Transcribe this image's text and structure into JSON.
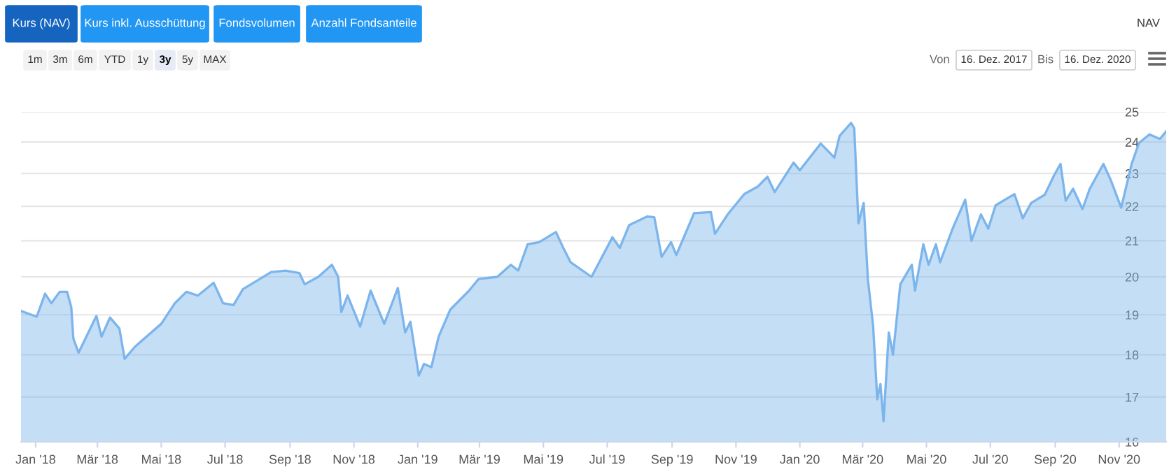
{
  "chart_data": {
    "type": "area",
    "annotations": [
      "Kurs (NAV)",
      "Kurs inkl. Ausschüttung",
      "Fondsvolumen",
      "Anzahl Fondsanteile",
      "NAV",
      "1m",
      "3m",
      "6m",
      "YTD",
      "1y",
      "3y",
      "5y",
      "MAX",
      "Von",
      "16. Dez. 2017",
      "Bis",
      "16. Dez. 2020"
    ],
    "series": [
      {
        "color": "#7cb5ec",
        "x": [
          "2017-12-18",
          "2018-01-02",
          "2018-01-10",
          "2018-01-16",
          "2018-01-24",
          "2018-01-31",
          "2018-02-04",
          "2018-02-06",
          "2018-02-11",
          "2018-02-28",
          "2018-03-05",
          "2018-03-13",
          "2018-03-22",
          "2018-03-27",
          "2018-04-06",
          "2018-05-01",
          "2018-05-14",
          "2018-05-25",
          "2018-06-05",
          "2018-06-20",
          "2018-06-29",
          "2018-07-09",
          "2018-07-18",
          "2018-08-03",
          "2018-08-14",
          "2018-08-28",
          "2018-09-10",
          "2018-09-15",
          "2018-09-28",
          "2018-10-11",
          "2018-10-17",
          "2018-10-20",
          "2018-10-26",
          "2018-11-07",
          "2018-11-17",
          "2018-11-30",
          "2018-12-13",
          "2018-12-20",
          "2018-12-25",
          "2019-01-02",
          "2019-01-07",
          "2019-01-14",
          "2019-01-21",
          "2019-02-01",
          "2019-02-19",
          "2019-02-28",
          "2019-03-18",
          "2019-03-31",
          "2019-04-07",
          "2019-04-16",
          "2019-04-27",
          "2019-05-13",
          "2019-05-20",
          "2019-05-27",
          "2019-06-16",
          "2019-07-06",
          "2019-07-13",
          "2019-07-22",
          "2019-08-08",
          "2019-08-15",
          "2019-08-22",
          "2019-08-31",
          "2019-09-05",
          "2019-09-22",
          "2019-10-08",
          "2019-10-12",
          "2019-10-24",
          "2019-11-09",
          "2019-11-22",
          "2019-12-01",
          "2019-12-08",
          "2019-12-26",
          "2020-01-01",
          "2020-01-21",
          "2020-02-03",
          "2020-02-08",
          "2020-02-19",
          "2020-02-22",
          "2020-02-26",
          "2020-03-02",
          "2020-03-06",
          "2020-03-11",
          "2020-03-15",
          "2020-03-18",
          "2020-03-21",
          "2020-03-26",
          "2020-03-30",
          "2020-04-06",
          "2020-04-17",
          "2020-04-20",
          "2020-04-28",
          "2020-05-03",
          "2020-05-10",
          "2020-05-14",
          "2020-05-26",
          "2020-06-07",
          "2020-06-13",
          "2020-06-22",
          "2020-06-29",
          "2020-07-06",
          "2020-07-24",
          "2020-08-01",
          "2020-08-09",
          "2020-08-22",
          "2020-08-31",
          "2020-09-06",
          "2020-09-11",
          "2020-09-18",
          "2020-09-27",
          "2020-10-04",
          "2020-10-17",
          "2020-10-24",
          "2020-11-03",
          "2020-11-13",
          "2020-11-20",
          "2020-11-30",
          "2020-12-10",
          "2020-12-16"
        ],
        "values": [
          19.1,
          18.95,
          19.55,
          19.3,
          19.6,
          19.6,
          19.2,
          18.4,
          18.05,
          18.97,
          18.45,
          18.93,
          18.65,
          17.9,
          18.2,
          18.77,
          19.3,
          19.6,
          19.5,
          19.84,
          19.3,
          19.25,
          19.67,
          19.94,
          20.13,
          20.17,
          20.1,
          19.8,
          20.0,
          20.33,
          20.0,
          19.07,
          19.5,
          18.7,
          19.63,
          18.77,
          19.7,
          18.55,
          18.82,
          17.5,
          17.78,
          17.7,
          18.45,
          19.13,
          19.63,
          19.94,
          20.0,
          20.33,
          20.17,
          20.9,
          20.96,
          21.25,
          20.8,
          20.4,
          20.0,
          21.1,
          20.8,
          21.45,
          21.7,
          21.68,
          20.55,
          20.96,
          20.6,
          21.8,
          21.83,
          21.2,
          21.76,
          22.37,
          22.6,
          22.9,
          22.43,
          23.34,
          23.1,
          23.95,
          23.5,
          24.2,
          24.63,
          24.45,
          21.5,
          22.1,
          19.94,
          18.72,
          16.95,
          17.3,
          16.45,
          18.55,
          18.0,
          19.8,
          20.33,
          19.63,
          20.9,
          20.33,
          20.9,
          20.4,
          21.35,
          22.2,
          21.0,
          21.76,
          21.35,
          22.03,
          22.37,
          21.65,
          22.1,
          22.35,
          22.95,
          23.3,
          22.17,
          22.53,
          21.92,
          22.53,
          23.3,
          22.8,
          21.96,
          23.3,
          23.97,
          24.25,
          24.1,
          24.35
        ]
      }
    ],
    "xlim": [
      "2017-12-18",
      "2020-12-16"
    ],
    "xticks": [
      {
        "value": "2018-01-01",
        "label": "Jan '18"
      },
      {
        "value": "2018-03-01",
        "label": "Mär '18"
      },
      {
        "value": "2018-05-01",
        "label": "Mai '18"
      },
      {
        "value": "2018-07-01",
        "label": "Jul '18"
      },
      {
        "value": "2018-09-01",
        "label": "Sep '18"
      },
      {
        "value": "2018-11-01",
        "label": "Nov '18"
      },
      {
        "value": "2019-01-01",
        "label": "Jan '19"
      },
      {
        "value": "2019-03-01",
        "label": "Mär '19"
      },
      {
        "value": "2019-05-01",
        "label": "Mai '19"
      },
      {
        "value": "2019-07-01",
        "label": "Jul '19"
      },
      {
        "value": "2019-09-01",
        "label": "Sep '19"
      },
      {
        "value": "2019-11-01",
        "label": "Nov '19"
      },
      {
        "value": "2020-01-01",
        "label": "Jan '20"
      },
      {
        "value": "2020-03-01",
        "label": "Mär '20"
      },
      {
        "value": "2020-05-01",
        "label": "Mai '20"
      },
      {
        "value": "2020-07-01",
        "label": "Jul '20"
      },
      {
        "value": "2020-09-01",
        "label": "Sep '20"
      },
      {
        "value": "2020-11-01",
        "label": "Nov '20"
      }
    ],
    "log": true,
    "ylim": [
      16,
      25
    ],
    "yticks": [
      16,
      17,
      18,
      19,
      20,
      21,
      22,
      23,
      24,
      25
    ],
    "grid": "y"
  }
}
